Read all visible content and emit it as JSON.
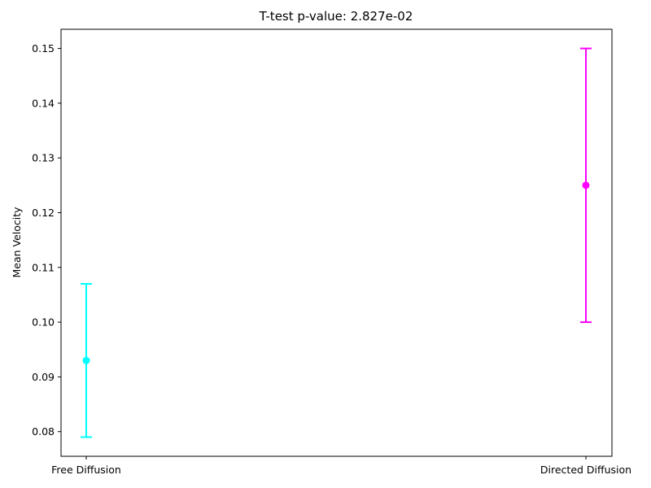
{
  "chart_data": {
    "type": "errorbar",
    "title": "T-test p-value: 2.827e-02",
    "xlabel": "",
    "ylabel": "Mean Velocity",
    "categories": [
      "Free Diffusion",
      "Directed Diffusion"
    ],
    "series": [
      {
        "category": "Free Diffusion",
        "mean": 0.093,
        "lower": 0.079,
        "upper": 0.107,
        "color": "#00ffff"
      },
      {
        "category": "Directed Diffusion",
        "mean": 0.125,
        "lower": 0.1,
        "upper": 0.15,
        "color": "#ff00ff"
      }
    ],
    "yticks": [
      "0.08",
      "0.09",
      "0.10",
      "0.11",
      "0.12",
      "0.13",
      "0.14",
      "0.15"
    ],
    "ylim": [
      0.0755,
      0.1535
    ],
    "grid": false,
    "legend": "none"
  }
}
